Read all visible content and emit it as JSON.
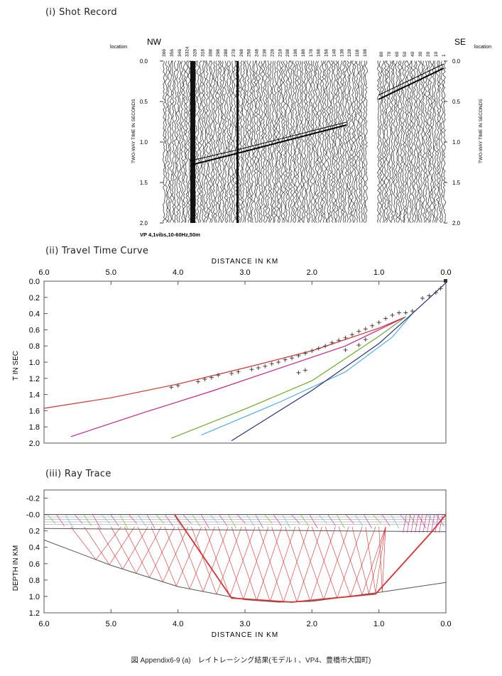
{
  "panel1": {
    "title": "(i) Shot Record",
    "location_label": "location",
    "nw": "NW",
    "se": "SE",
    "ylabel": "TWO-WAY TIME IN SECONDS",
    "yticks": [
      "0.0",
      "0.5",
      "1.0",
      "1.5",
      "2.0"
    ],
    "location_ticks": [
      "366",
      "356",
      "346",
      "3324",
      "328",
      "318",
      "308",
      "298",
      "288",
      "278",
      "268",
      "258",
      "248",
      "238",
      "228",
      "218",
      "208",
      "198",
      "188",
      "178",
      "168",
      "158",
      "148",
      "138",
      "128",
      "118",
      "108",
      "80",
      "70",
      "60",
      "50",
      "40",
      "30",
      "20",
      "10",
      "1"
    ],
    "note": "VP 4,1vibs,10-60Hz,50m"
  },
  "panel2": {
    "title": "(ii) Travel Time Curve",
    "chart_data": {
      "type": "line",
      "title": "(ii) Travel Time Curve",
      "xlabel": "DISTANCE IN KM",
      "ylabel": "T IN SEC",
      "xlim": [
        6.0,
        0.0
      ],
      "ylim": [
        2.0,
        0.0
      ],
      "xticks": [
        "6.0",
        "5.0",
        "4.0",
        "3.0",
        "2.0",
        "1.0",
        "0.0"
      ],
      "yticks": [
        "0.0",
        "0.2",
        "0.4",
        "0.6",
        "0.8",
        "1.0",
        "1.2",
        "1.4",
        "1.6",
        "1.8",
        "2.0"
      ],
      "colors": {
        "red": "#d93030",
        "magenta": "#c8238a",
        "green": "#6aaa2a",
        "cyan": "#54aee0",
        "navy": "#25307a",
        "picks": "#444444"
      },
      "series": [
        {
          "color": "red",
          "x": [
            6.0,
            5.0,
            4.0,
            3.0,
            2.0,
            1.0,
            0.6
          ],
          "y": [
            1.57,
            1.44,
            1.27,
            1.07,
            0.86,
            0.58,
            0.44
          ]
        },
        {
          "color": "magenta",
          "x": [
            5.6,
            4.5,
            3.5,
            2.5,
            1.5,
            0.9,
            0.6
          ],
          "y": [
            1.92,
            1.62,
            1.36,
            1.08,
            0.8,
            0.56,
            0.44
          ]
        },
        {
          "color": "green",
          "x": [
            4.1,
            3.0,
            2.0,
            1.0,
            0.6
          ],
          "y": [
            1.94,
            1.58,
            1.23,
            0.68,
            0.44
          ]
        },
        {
          "color": "cyan",
          "x": [
            3.65,
            2.5,
            1.5,
            0.8,
            0.5
          ],
          "y": [
            1.9,
            1.5,
            1.12,
            0.69,
            0.4
          ]
        },
        {
          "color": "navy",
          "x": [
            3.2,
            2.0,
            1.0,
            0.5,
            0.0
          ],
          "y": [
            1.97,
            1.35,
            0.77,
            0.4,
            0.02
          ]
        },
        {
          "color": "picks",
          "x": [
            4.1,
            4.0,
            3.7,
            3.6,
            3.5,
            3.4,
            3.2,
            3.1,
            2.9,
            2.8,
            2.7,
            2.6,
            2.5,
            2.4,
            2.3,
            2.2,
            2.1,
            2.0,
            1.9,
            1.8,
            1.7,
            1.6,
            1.5,
            1.4,
            1.3,
            1.2,
            1.1,
            1.0,
            0.9,
            0.8,
            0.7,
            0.35,
            0.25,
            0.15,
            0.08,
            2.2,
            2.1,
            1.5,
            1.3,
            1.2,
            0.6,
            0.5
          ],
          "y": [
            1.31,
            1.29,
            1.24,
            1.21,
            1.19,
            1.16,
            1.14,
            1.12,
            1.09,
            1.07,
            1.05,
            1.02,
            1.0,
            0.97,
            0.95,
            0.92,
            0.89,
            0.86,
            0.83,
            0.8,
            0.76,
            0.73,
            0.7,
            0.66,
            0.62,
            0.59,
            0.55,
            0.51,
            0.46,
            0.42,
            0.39,
            0.21,
            0.18,
            0.14,
            0.09,
            1.13,
            1.1,
            0.85,
            0.79,
            0.72,
            0.39,
            0.37
          ]
        }
      ]
    }
  },
  "panel3": {
    "title": "(iii) Ray Trace",
    "xlabel": "DISTANCE IN KM",
    "ylabel": "DEPTH IN KM",
    "xticks": [
      "6.0",
      "5.0",
      "4.0",
      "3.0",
      "2.0",
      "1.0",
      "0.0"
    ],
    "yticks": [
      "-0.2",
      "-0.0",
      "0.2",
      "0.4",
      "0.6",
      "0.8",
      "1.0",
      "1.2"
    ],
    "xlim": [
      6.0,
      0.0
    ],
    "ylim": [
      -0.3,
      1.2
    ],
    "boundary_deep": {
      "x": [
        6.0,
        5.0,
        4.0,
        3.0,
        2.5,
        2.0,
        1.0,
        0.0
      ],
      "y": [
        0.31,
        0.62,
        0.88,
        1.04,
        1.07,
        1.06,
        0.95,
        0.83
      ]
    },
    "boundary_mid": {
      "x": [
        6.0,
        4.5,
        3.0,
        1.5,
        0.0
      ],
      "y": [
        0.17,
        0.18,
        0.19,
        0.2,
        0.21
      ]
    },
    "ray_color": "#d93030"
  },
  "caption": "図 Appendix6-9 (a)　レイトレーシング結果(モデル I 、VP4、豊橋市大国町)"
}
